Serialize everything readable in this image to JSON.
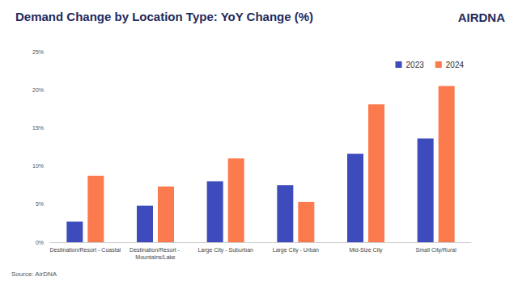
{
  "chart_data": {
    "type": "bar",
    "title": "Demand Change by Location Type: YoY Change (%)",
    "categories": [
      "Destination/Resort - Coastal",
      "Destination/Resort - Mountains/Lake",
      "Large City - Suburban",
      "Large City - Urban",
      "Mid-Size City",
      "Small City/Rural"
    ],
    "series": [
      {
        "name": "2023",
        "color": "#3d4bbd",
        "values": [
          2.7,
          4.8,
          8.0,
          7.5,
          11.6,
          13.6
        ]
      },
      {
        "name": "2024",
        "color": "#fb7a4e",
        "values": [
          8.7,
          7.3,
          11.0,
          5.3,
          18.1,
          20.5
        ]
      }
    ],
    "ylim": [
      0,
      25
    ],
    "yticks": [
      {
        "value": 0,
        "label": "0%"
      },
      {
        "value": 5,
        "label": "5%"
      },
      {
        "value": 10,
        "label": "10%"
      },
      {
        "value": 15,
        "label": "15%"
      },
      {
        "value": 20,
        "label": "20%"
      },
      {
        "value": 25,
        "label": "25%"
      }
    ],
    "grid": false,
    "legend": "top-right",
    "annotations": [
      {
        "text": "AIRDNA"
      },
      {
        "text": "Source: AirDNA"
      }
    ]
  }
}
